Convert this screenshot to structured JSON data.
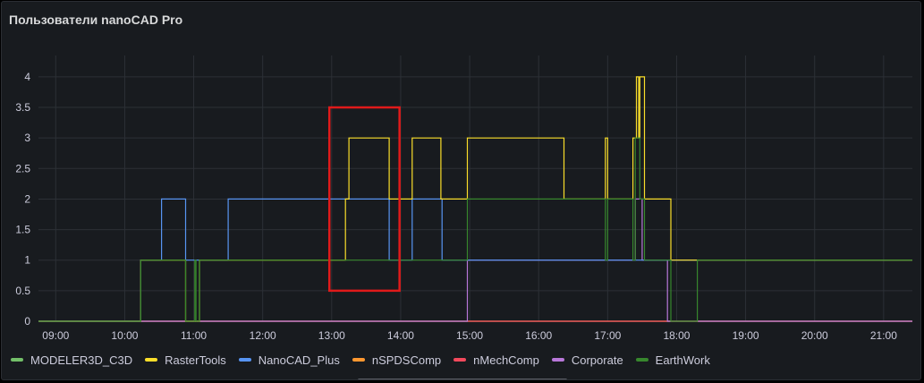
{
  "panel": {
    "title": "Пользователи nanoCAD Pro"
  },
  "chart_data": {
    "type": "line",
    "title": "Пользователи nanoCAD Pro",
    "xlabel": "",
    "ylabel": "",
    "x_ticks": [
      "09:00",
      "10:00",
      "11:00",
      "12:00",
      "13:00",
      "14:00",
      "15:00",
      "16:00",
      "17:00",
      "18:00",
      "19:00",
      "20:00",
      "21:00"
    ],
    "y_ticks": [
      "0",
      "0.5",
      "1",
      "1.5",
      "2",
      "2.5",
      "3",
      "3.5",
      "4"
    ],
    "xlim": [
      "08:45",
      "21:25"
    ],
    "ylim": [
      0,
      4.35
    ],
    "grid": true,
    "legend_position": "bottom-left",
    "step": "after",
    "series": [
      {
        "name": "MODELER3D_C3D",
        "color": "#73bf69",
        "points": [
          [
            "08:45",
            0
          ],
          [
            "21:25",
            0
          ]
        ]
      },
      {
        "name": "RasterTools",
        "color": "#fade2a",
        "points": [
          [
            "08:45",
            0
          ],
          [
            "10:14",
            1
          ],
          [
            "10:53",
            0
          ],
          [
            "11:05",
            1
          ],
          [
            "13:12",
            2
          ],
          [
            "13:15",
            3
          ],
          [
            "13:50",
            2
          ],
          [
            "14:10",
            3
          ],
          [
            "14:35",
            2
          ],
          [
            "14:58",
            3
          ],
          [
            "16:22",
            2
          ],
          [
            "16:58",
            3
          ],
          [
            "17:00",
            2
          ],
          [
            "17:22",
            3
          ],
          [
            "17:25",
            4
          ],
          [
            "17:27",
            3
          ],
          [
            "17:28",
            4
          ],
          [
            "17:32",
            2
          ],
          [
            "17:55",
            1
          ],
          [
            "21:25",
            1
          ]
        ]
      },
      {
        "name": "NanoCAD_Plus",
        "color": "#5794f2",
        "points": [
          [
            "08:45",
            0
          ],
          [
            "10:14",
            1
          ],
          [
            "10:32",
            2
          ],
          [
            "10:53",
            1
          ],
          [
            "11:05",
            1
          ],
          [
            "11:30",
            2
          ],
          [
            "13:50",
            1
          ],
          [
            "14:10",
            2
          ],
          [
            "14:36",
            1
          ],
          [
            "17:55",
            1
          ],
          [
            "21:25",
            1
          ]
        ]
      },
      {
        "name": "nSPDSComp",
        "color": "#ff9830",
        "points": [
          [
            "08:45",
            0
          ],
          [
            "21:25",
            0
          ]
        ]
      },
      {
        "name": "nMechComp",
        "color": "#f2495c",
        "points": [
          [
            "08:45",
            0
          ],
          [
            "21:25",
            0
          ]
        ]
      },
      {
        "name": "Corporate",
        "color": "#b877d9",
        "points": [
          [
            "08:45",
            0
          ],
          [
            "14:58",
            1
          ],
          [
            "16:22",
            1
          ],
          [
            "17:24",
            2
          ],
          [
            "17:30",
            1
          ],
          [
            "17:52",
            0
          ],
          [
            "21:25",
            0
          ]
        ]
      },
      {
        "name": "EarthWork",
        "color": "#37872d",
        "points": [
          [
            "08:45",
            0
          ],
          [
            "10:14",
            1
          ],
          [
            "10:53",
            0
          ],
          [
            "11:01",
            1
          ],
          [
            "11:02",
            0
          ],
          [
            "11:05",
            1
          ],
          [
            "14:58",
            2
          ],
          [
            "16:22",
            2
          ],
          [
            "16:58",
            1
          ],
          [
            "17:00",
            2
          ],
          [
            "17:22",
            1
          ],
          [
            "17:24",
            3
          ],
          [
            "17:28",
            2
          ],
          [
            "17:32",
            1
          ],
          [
            "17:55",
            0
          ],
          [
            "18:18",
            1
          ],
          [
            "21:25",
            1
          ]
        ]
      }
    ],
    "annotation": {
      "type": "rectangle",
      "color": "#e01a1a",
      "x0": "12:58",
      "x1": "13:59",
      "y0": 0.5,
      "y1": 3.5
    }
  }
}
